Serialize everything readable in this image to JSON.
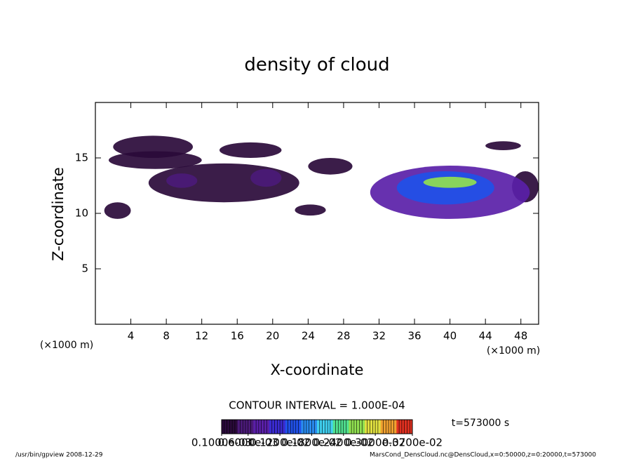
{
  "chart_data": {
    "type": "contour",
    "title": "density of cloud",
    "x_label": "X-coordinate",
    "y_label": "Z-coordinate",
    "x_unit_left": "(×1000 m)",
    "x_unit_right": "(×1000 m)",
    "contour_interval": "CONTOUR INTERVAL = 1.000E-04",
    "time_label": "t=573000 s",
    "footer_left": "/usr/bin/gpview  2008-12-29",
    "footer_right": "MarsCond_DensCloud.nc@DensCloud,x=0:50000,z=0:20000,t=573000",
    "xlim": [
      0,
      50
    ],
    "ylim": [
      0,
      20
    ],
    "xticks": [
      4,
      8,
      12,
      16,
      20,
      24,
      28,
      32,
      36,
      40,
      44,
      48
    ],
    "yticks": [
      5,
      10,
      15
    ],
    "colormap": [
      "#2a0a3a",
      "#4b1a78",
      "#5a1fa8",
      "#3a2bd0",
      "#2050e8",
      "#2a8cf0",
      "#40d0f0",
      "#50e090",
      "#90e050",
      "#e0e040",
      "#f0a030",
      "#e03020"
    ],
    "levels": [
      {
        "value": 0.0001,
        "label": "0.1000e-03"
      },
      {
        "value": 0.0006,
        "label": "0.6000e-03"
      },
      {
        "value": 0.0012,
        "label": "0.1200e-02"
      },
      {
        "value": 0.0018,
        "label": "0.1800e-02"
      },
      {
        "value": 0.0024,
        "label": "0.2400e-02"
      },
      {
        "value": 0.003,
        "label": "0.3000e-02"
      },
      {
        "value": 0.0037,
        "label": "0.3700e-02"
      }
    ],
    "blobs": [
      {
        "x": [
          2,
          11
        ],
        "z": [
          15,
          17
        ],
        "value": 0.0002
      },
      {
        "x": [
          1.5,
          12
        ],
        "z": [
          14,
          15.6
        ],
        "value": 0.0002
      },
      {
        "x": [
          14,
          21
        ],
        "z": [
          15,
          16.4
        ],
        "value": 0.0002
      },
      {
        "x": [
          6,
          23
        ],
        "z": [
          11,
          14.5
        ],
        "value": 0.0003
      },
      {
        "x": [
          8,
          11.5
        ],
        "z": [
          12.3,
          13.6
        ],
        "value": 0.0006
      },
      {
        "x": [
          17.5,
          21
        ],
        "z": [
          12.4,
          14
        ],
        "value": 0.0006
      },
      {
        "x": [
          24,
          29
        ],
        "z": [
          13.5,
          15
        ],
        "value": 0.0003
      },
      {
        "x": [
          22.5,
          26
        ],
        "z": [
          9.8,
          10.8
        ],
        "value": 0.0002
      },
      {
        "x": [
          1,
          4
        ],
        "z": [
          9.5,
          11
        ],
        "value": 0.0002
      },
      {
        "x": [
          44,
          48
        ],
        "z": [
          15.7,
          16.5
        ],
        "value": 0.0002
      },
      {
        "x": [
          47,
          50
        ],
        "z": [
          11,
          13.8
        ],
        "value": 0.0003
      },
      {
        "x": [
          31,
          49
        ],
        "z": [
          9.5,
          14.3
        ],
        "value": 0.0008
      },
      {
        "x": [
          34,
          45
        ],
        "z": [
          10.8,
          13.8
        ],
        "value": 0.0015
      },
      {
        "x": [
          37,
          43
        ],
        "z": [
          12.3,
          13.3
        ],
        "value": 0.0025
      }
    ]
  }
}
